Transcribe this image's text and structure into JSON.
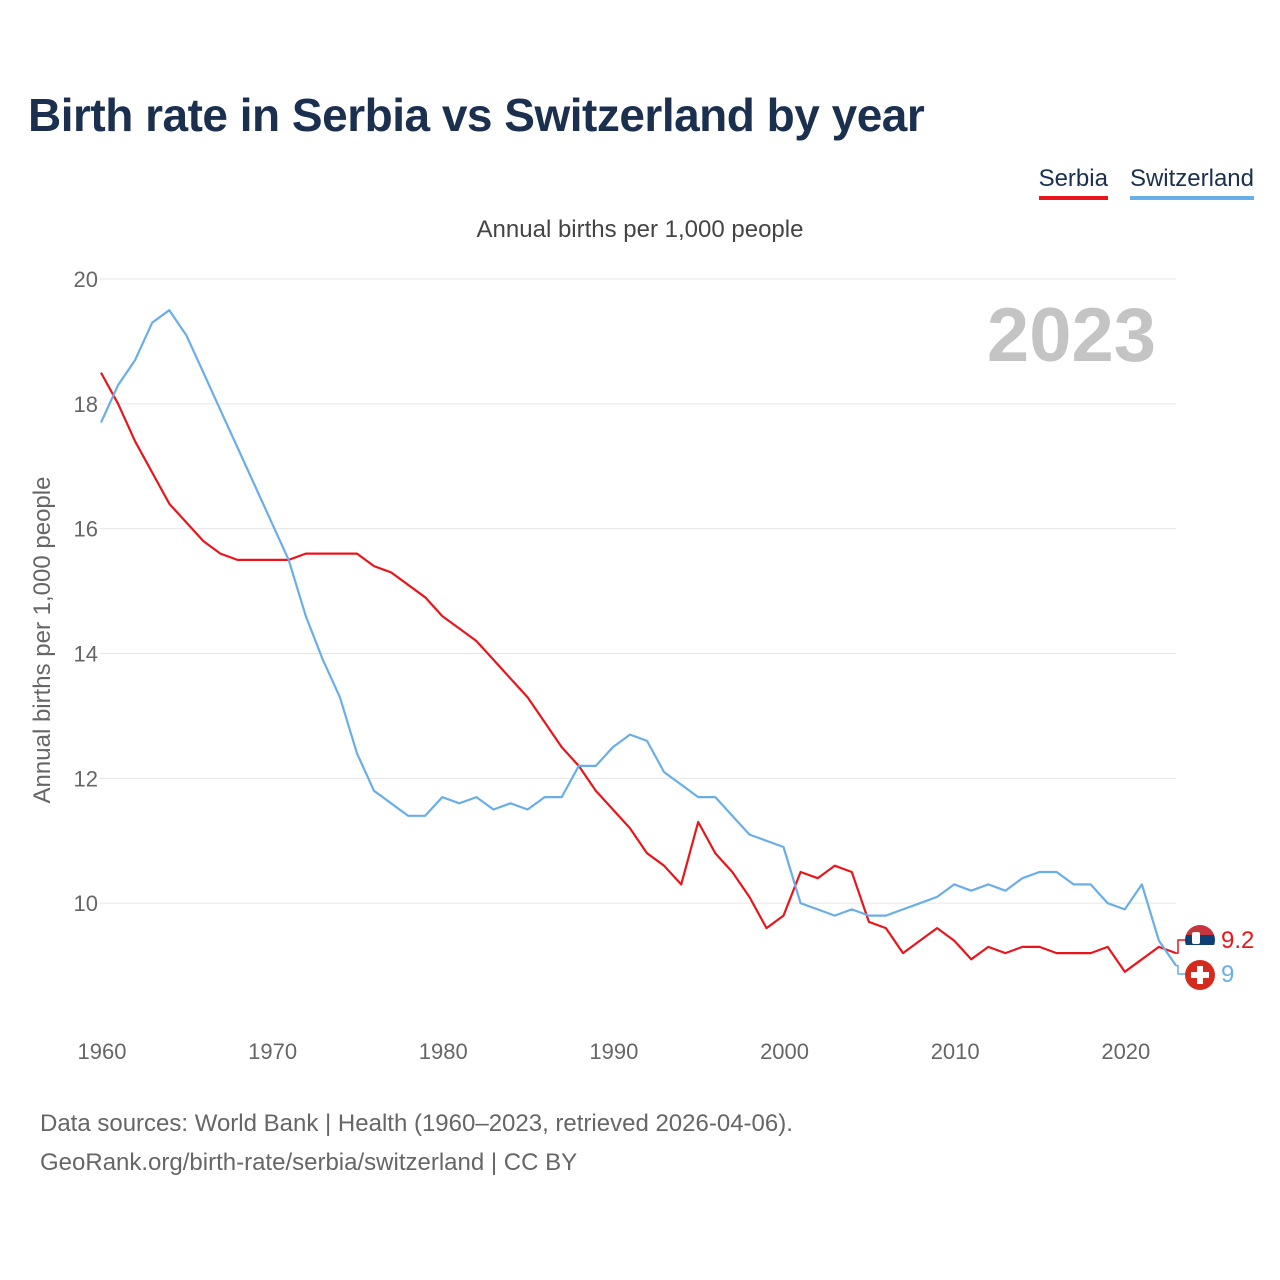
{
  "title": "Birth rate in Serbia vs Switzerland by year",
  "subtitle": "Annual births per 1,000 people",
  "legend": [
    {
      "name": "Serbia",
      "color": "#e8161b"
    },
    {
      "name": "Switzerland",
      "color": "#6aaee9"
    }
  ],
  "source": {
    "line1": "Data sources: World Bank | Health (1960–2023, retrieved 2026-04-06).",
    "line2": "GeoRank.org/birth-rate/serbia/switzerland | CC BY"
  },
  "chart_data": {
    "type": "line",
    "title": "Birth rate in Serbia vs Switzerland by year",
    "subtitle": "Annual births per 1,000 people",
    "xlabel": "",
    "ylabel": "Annual births per 1,000 people",
    "xlim": [
      1960,
      2023
    ],
    "ylim": [
      8.0,
      20.0
    ],
    "yticks": [
      10,
      12,
      14,
      16,
      18,
      20
    ],
    "xticks": [
      1960,
      1970,
      1980,
      1990,
      2000,
      2010,
      2020
    ],
    "year_label": "2023",
    "grid": true,
    "legend_position": "top-right",
    "x": [
      1960,
      1961,
      1962,
      1963,
      1964,
      1965,
      1966,
      1967,
      1968,
      1969,
      1970,
      1971,
      1972,
      1973,
      1974,
      1975,
      1976,
      1977,
      1978,
      1979,
      1980,
      1981,
      1982,
      1983,
      1984,
      1985,
      1986,
      1987,
      1988,
      1989,
      1990,
      1991,
      1992,
      1993,
      1994,
      1995,
      1996,
      1997,
      1998,
      1999,
      2000,
      2001,
      2002,
      2003,
      2004,
      2005,
      2006,
      2007,
      2008,
      2009,
      2010,
      2011,
      2012,
      2013,
      2014,
      2015,
      2016,
      2017,
      2018,
      2019,
      2020,
      2021,
      2022,
      2023
    ],
    "series": [
      {
        "name": "Serbia",
        "color": "#e8161b",
        "end_label": "9.2",
        "values": [
          18.5,
          18.0,
          17.4,
          16.9,
          16.4,
          16.1,
          15.8,
          15.6,
          15.5,
          15.5,
          15.5,
          15.5,
          15.6,
          15.6,
          15.6,
          15.6,
          15.4,
          15.3,
          15.1,
          14.9,
          14.6,
          14.4,
          14.2,
          13.9,
          13.6,
          13.3,
          12.9,
          12.5,
          12.2,
          11.8,
          11.5,
          11.2,
          10.8,
          10.6,
          10.3,
          11.3,
          10.8,
          10.5,
          10.1,
          9.6,
          9.8,
          10.5,
          10.4,
          10.6,
          10.5,
          9.7,
          9.6,
          9.2,
          9.4,
          9.6,
          9.4,
          9.1,
          9.3,
          9.2,
          9.3,
          9.3,
          9.2,
          9.2,
          9.2,
          9.3,
          8.9,
          9.1,
          9.3,
          9.2
        ]
      },
      {
        "name": "Switzerland",
        "color": "#6aaee9",
        "end_label": "9",
        "values": [
          17.7,
          18.3,
          18.7,
          19.3,
          19.5,
          19.1,
          18.5,
          17.9,
          17.3,
          16.7,
          16.1,
          15.5,
          14.6,
          13.9,
          13.3,
          12.4,
          11.8,
          11.6,
          11.4,
          11.4,
          11.7,
          11.6,
          11.7,
          11.5,
          11.6,
          11.5,
          11.7,
          11.7,
          12.2,
          12.2,
          12.5,
          12.7,
          12.6,
          12.1,
          11.9,
          11.7,
          11.7,
          11.4,
          11.1,
          11.0,
          10.9,
          10.0,
          9.9,
          9.8,
          9.9,
          9.8,
          9.8,
          9.9,
          10.0,
          10.1,
          10.3,
          10.2,
          10.3,
          10.2,
          10.4,
          10.5,
          10.5,
          10.3,
          10.3,
          10.0,
          9.9,
          10.3,
          9.4,
          9.0
        ]
      }
    ]
  }
}
